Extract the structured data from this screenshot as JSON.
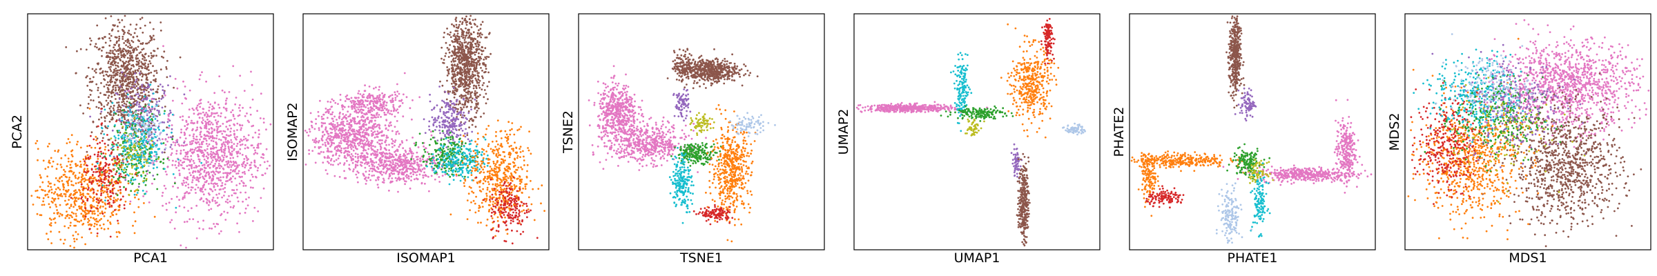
{
  "palette": {
    "pink": "#e377c2",
    "orange": "#ff7f0e",
    "brown": "#8c564b",
    "red": "#d62728",
    "purple": "#9467bd",
    "green": "#2ca02c",
    "cyan": "#17becf",
    "olive": "#bcbd22",
    "lightblue": "#aec7e8"
  },
  "chart_data": [
    {
      "type": "scatter",
      "xlabel": "PCA1",
      "ylabel": "PCA2",
      "xlim": [
        0,
        100
      ],
      "ylim": [
        0,
        100
      ],
      "ticks": "none",
      "clusters": [
        {
          "color": "brown",
          "x": 40,
          "y": 72,
          "sx": 7,
          "sy": 12,
          "n": 900
        },
        {
          "color": "purple",
          "x": 48,
          "y": 55,
          "sx": 6,
          "sy": 9,
          "n": 220
        },
        {
          "color": "pink",
          "x": 75,
          "y": 40,
          "sx": 10,
          "sy": 13,
          "n": 1000
        },
        {
          "color": "orange",
          "x": 22,
          "y": 24,
          "sx": 9,
          "sy": 10,
          "n": 600
        },
        {
          "color": "red",
          "x": 32,
          "y": 30,
          "sx": 5,
          "sy": 9,
          "n": 200
        },
        {
          "color": "green",
          "x": 44,
          "y": 42,
          "sx": 5,
          "sy": 8,
          "n": 200
        },
        {
          "color": "cyan",
          "x": 45,
          "y": 45,
          "sx": 6,
          "sy": 9,
          "n": 250
        },
        {
          "color": "olive",
          "x": 43,
          "y": 40,
          "sx": 4,
          "sy": 6,
          "n": 80
        },
        {
          "color": "lightblue",
          "x": 47,
          "y": 50,
          "sx": 4,
          "sy": 6,
          "n": 80
        }
      ]
    },
    {
      "type": "scatter",
      "xlabel": "ISOMAP1",
      "ylabel": "ISOMAP2",
      "xlim": [
        0,
        100
      ],
      "ylim": [
        0,
        100
      ],
      "ticks": "none",
      "clusters": [
        {
          "color": "brown",
          "x": 66,
          "y": 78,
          "sx": 4,
          "sy": 10,
          "n": 800
        },
        {
          "color": "purple",
          "x": 60,
          "y": 55,
          "sx": 4,
          "sy": 5,
          "n": 200
        },
        {
          "color": "pink",
          "x": 20,
          "y": 48,
          "sx": 9,
          "sy": 6,
          "n": 700
        },
        {
          "color": "pink",
          "x": 38,
          "y": 36,
          "sx": 9,
          "sy": 4,
          "n": 500
        },
        {
          "color": "pink",
          "x": 28,
          "y": 62,
          "sx": 7,
          "sy": 3,
          "n": 250
        },
        {
          "color": "green",
          "x": 58,
          "y": 40,
          "sx": 5,
          "sy": 4,
          "n": 200
        },
        {
          "color": "cyan",
          "x": 64,
          "y": 38,
          "sx": 5,
          "sy": 4,
          "n": 200
        },
        {
          "color": "orange",
          "x": 80,
          "y": 30,
          "sx": 6,
          "sy": 10,
          "n": 500
        },
        {
          "color": "red",
          "x": 84,
          "y": 18,
          "sx": 4,
          "sy": 6,
          "n": 180
        }
      ]
    },
    {
      "type": "scatter",
      "xlabel": "TSNE1",
      "ylabel": "TSNE2",
      "xlim": [
        0,
        100
      ],
      "ylim": [
        0,
        100
      ],
      "ticks": "none",
      "clusters": [
        {
          "color": "brown",
          "x": 53,
          "y": 76,
          "sx": 6,
          "sy": 2.5,
          "n": 500
        },
        {
          "color": "brown",
          "x": 43,
          "y": 78,
          "sx": 2,
          "sy": 3,
          "n": 120
        },
        {
          "color": "pink",
          "x": 16,
          "y": 58,
          "sx": 4,
          "sy": 6,
          "n": 500
        },
        {
          "color": "pink",
          "x": 28,
          "y": 45,
          "sx": 8,
          "sy": 4,
          "n": 500
        },
        {
          "color": "purple",
          "x": 42,
          "y": 62,
          "sx": 1.5,
          "sy": 3,
          "n": 80
        },
        {
          "color": "olive",
          "x": 50,
          "y": 53,
          "sx": 2,
          "sy": 2,
          "n": 70
        },
        {
          "color": "green",
          "x": 48,
          "y": 41,
          "sx": 4,
          "sy": 2,
          "n": 200
        },
        {
          "color": "cyan",
          "x": 42,
          "y": 29,
          "sx": 2,
          "sy": 6,
          "n": 200
        },
        {
          "color": "orange",
          "x": 62,
          "y": 34,
          "sx": 4,
          "sy": 9,
          "n": 500
        },
        {
          "color": "red",
          "x": 56,
          "y": 15,
          "sx": 3,
          "sy": 1.5,
          "n": 120
        },
        {
          "color": "lightblue",
          "x": 69,
          "y": 53,
          "sx": 4,
          "sy": 2,
          "n": 80
        }
      ]
    },
    {
      "type": "scatter",
      "xlabel": "UMAP1",
      "ylabel": "UMAP2",
      "xlim": [
        0,
        100
      ],
      "ylim": [
        0,
        100
      ],
      "ticks": "none",
      "clusters": [
        {
          "color": "pink",
          "x": 22,
          "y": 60,
          "sx": 9,
          "sy": 0.8,
          "n": 450
        },
        {
          "color": "cyan",
          "x": 44,
          "y": 68,
          "sx": 1.5,
          "sy": 6,
          "n": 150
        },
        {
          "color": "green",
          "x": 51,
          "y": 58,
          "sx": 5,
          "sy": 1.2,
          "n": 150
        },
        {
          "color": "olive",
          "x": 48,
          "y": 52,
          "sx": 1.5,
          "sy": 2,
          "n": 50
        },
        {
          "color": "orange",
          "x": 72,
          "y": 70,
          "sx": 4,
          "sy": 8,
          "n": 400
        },
        {
          "color": "red",
          "x": 79,
          "y": 90,
          "sx": 1,
          "sy": 4,
          "n": 120
        },
        {
          "color": "purple",
          "x": 66,
          "y": 37,
          "sx": 0.8,
          "sy": 3,
          "n": 60
        },
        {
          "color": "brown",
          "x": 69,
          "y": 20,
          "sx": 1,
          "sy": 8,
          "n": 300
        },
        {
          "color": "lightblue",
          "x": 90,
          "y": 51,
          "sx": 2,
          "sy": 1,
          "n": 60
        }
      ]
    },
    {
      "type": "scatter",
      "xlabel": "PHATE1",
      "ylabel": "PHATE2",
      "xlim": [
        0,
        100
      ],
      "ylim": [
        0,
        100
      ],
      "ticks": "none",
      "clusters": [
        {
          "color": "brown",
          "x": 43,
          "y": 82,
          "sx": 1.2,
          "sy": 9,
          "n": 400
        },
        {
          "color": "purple",
          "x": 48,
          "y": 62,
          "sx": 1.5,
          "sy": 3,
          "n": 80
        },
        {
          "color": "pink",
          "x": 72,
          "y": 32,
          "sx": 10,
          "sy": 1.5,
          "n": 400
        },
        {
          "color": "pink",
          "x": 88,
          "y": 42,
          "sx": 2,
          "sy": 6,
          "n": 250
        },
        {
          "color": "orange",
          "x": 20,
          "y": 38,
          "sx": 10,
          "sy": 1.5,
          "n": 300
        },
        {
          "color": "orange",
          "x": 8,
          "y": 30,
          "sx": 1.5,
          "sy": 5,
          "n": 120
        },
        {
          "color": "red",
          "x": 15,
          "y": 22,
          "sx": 4,
          "sy": 1.5,
          "n": 120
        },
        {
          "color": "green",
          "x": 48,
          "y": 37,
          "sx": 3,
          "sy": 3,
          "n": 150
        },
        {
          "color": "olive",
          "x": 52,
          "y": 33,
          "sx": 2,
          "sy": 2,
          "n": 60
        },
        {
          "color": "cyan",
          "x": 53,
          "y": 20,
          "sx": 1.5,
          "sy": 6,
          "n": 120
        },
        {
          "color": "lightblue",
          "x": 41,
          "y": 14,
          "sx": 2,
          "sy": 6,
          "n": 150
        }
      ]
    },
    {
      "type": "scatter",
      "xlabel": "MDS1",
      "ylabel": "MDS2",
      "xlim": [
        0,
        100
      ],
      "ylim": [
        0,
        100
      ],
      "ticks": "none",
      "clusters": [
        {
          "color": "pink",
          "x": 66,
          "y": 70,
          "sx": 14,
          "sy": 9,
          "n": 1100
        },
        {
          "color": "brown",
          "x": 66,
          "y": 35,
          "sx": 11,
          "sy": 12,
          "n": 900
        },
        {
          "color": "orange",
          "x": 27,
          "y": 38,
          "sx": 10,
          "sy": 12,
          "n": 700
        },
        {
          "color": "red",
          "x": 17,
          "y": 45,
          "sx": 6,
          "sy": 10,
          "n": 300
        },
        {
          "color": "cyan",
          "x": 30,
          "y": 65,
          "sx": 9,
          "sy": 8,
          "n": 350
        },
        {
          "color": "green",
          "x": 38,
          "y": 55,
          "sx": 9,
          "sy": 9,
          "n": 250
        },
        {
          "color": "purple",
          "x": 45,
          "y": 62,
          "sx": 10,
          "sy": 10,
          "n": 250
        },
        {
          "color": "lightblue",
          "x": 35,
          "y": 70,
          "sx": 8,
          "sy": 6,
          "n": 150
        },
        {
          "color": "olive",
          "x": 40,
          "y": 50,
          "sx": 10,
          "sy": 10,
          "n": 100
        }
      ]
    }
  ]
}
